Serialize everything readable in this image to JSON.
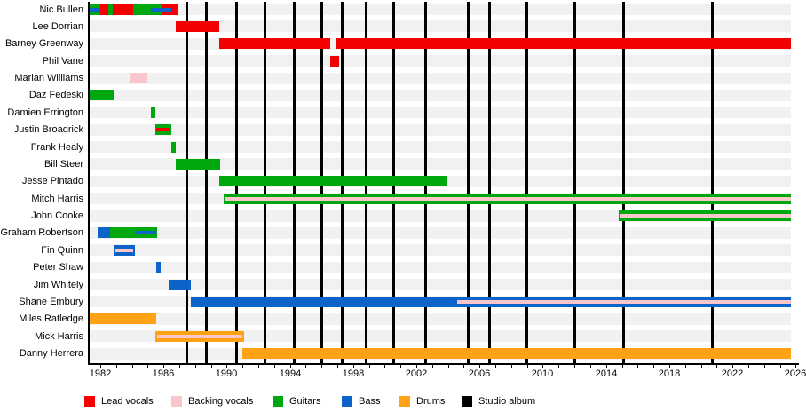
{
  "chart_data": {
    "type": "timeline",
    "description": "Band members timeline (gantt-style) with studio album release markers",
    "x_axis": {
      "domain_start": 1981.27,
      "domain_end": 2025.7,
      "tick_interval": 1,
      "label_interval": 4,
      "label_years": [
        1982,
        1986,
        1990,
        1994,
        1998,
        2002,
        2006,
        2010,
        2014,
        2018,
        2022,
        2026
      ]
    },
    "colors": {
      "red": "#f30000",
      "pink": "#f9c6cc",
      "green": "#00a810",
      "blue": "#0d64c8",
      "orange": "#ffa216",
      "black": "#000000",
      "row_band": "#f1f1f1"
    },
    "legend": [
      {
        "label": "Lead vocals",
        "color_key": "red"
      },
      {
        "label": "Backing vocals",
        "color_key": "pink"
      },
      {
        "label": "Guitars",
        "color_key": "green"
      },
      {
        "label": "Bass",
        "color_key": "blue"
      },
      {
        "label": "Drums",
        "color_key": "orange"
      },
      {
        "label": "Studio album",
        "color_key": "black"
      }
    ],
    "album_years": [
      1987.45,
      1988.7,
      1990.65,
      1992.4,
      1994.3,
      1996.0,
      1997.3,
      1998.85,
      2000.55,
      2002.6,
      2005.3,
      2006.65,
      2009.0,
      2012.05,
      2015.1,
      2020.75
    ],
    "members": [
      {
        "name": "Nic Bullen",
        "segments": [
          {
            "c": "red",
            "s": 1981.3,
            "e": 1986.9,
            "p": "full"
          },
          {
            "c": "green",
            "s": 1981.3,
            "e": 1981.95,
            "p": "full"
          },
          {
            "c": "green",
            "s": 1982.5,
            "e": 1982.8,
            "p": "full"
          },
          {
            "c": "green",
            "s": 1984.1,
            "e": 1985.9,
            "p": "full"
          },
          {
            "c": "blue",
            "s": 1981.3,
            "e": 1981.95,
            "p": "mid"
          },
          {
            "c": "blue",
            "s": 1985.2,
            "e": 1986.5,
            "p": "mid"
          }
        ]
      },
      {
        "name": "Lee Dorrian",
        "segments": [
          {
            "c": "red",
            "s": 1986.8,
            "e": 1989.55,
            "p": "full"
          }
        ]
      },
      {
        "name": "Barney Greenway",
        "segments": [
          {
            "c": "red",
            "s": 1989.55,
            "e": 1996.55,
            "p": "full"
          },
          {
            "c": "red",
            "s": 1996.9,
            "e": 2025.7,
            "p": "full"
          }
        ]
      },
      {
        "name": "Phil Vane",
        "segments": [
          {
            "c": "red",
            "s": 1996.55,
            "e": 1997.1,
            "p": "full"
          }
        ]
      },
      {
        "name": "Marian Williams",
        "segments": [
          {
            "c": "pink",
            "s": 1983.9,
            "e": 1984.95,
            "p": "full"
          }
        ]
      },
      {
        "name": "Daz Fedeski",
        "segments": [
          {
            "c": "green",
            "s": 1981.3,
            "e": 1982.8,
            "p": "full"
          }
        ]
      },
      {
        "name": "Damien Errington",
        "segments": [
          {
            "c": "green",
            "s": 1985.2,
            "e": 1985.5,
            "p": "full"
          }
        ]
      },
      {
        "name": "Justin Broadrick",
        "segments": [
          {
            "c": "green",
            "s": 1985.5,
            "e": 1986.5,
            "p": "full"
          },
          {
            "c": "red",
            "s": 1985.55,
            "e": 1986.45,
            "p": "mid"
          }
        ]
      },
      {
        "name": "Frank Healy",
        "segments": [
          {
            "c": "green",
            "s": 1986.5,
            "e": 1986.8,
            "p": "full"
          }
        ]
      },
      {
        "name": "Bill Steer",
        "segments": [
          {
            "c": "green",
            "s": 1986.75,
            "e": 1989.55,
            "p": "full"
          }
        ]
      },
      {
        "name": "Jesse Pintado",
        "segments": [
          {
            "c": "green",
            "s": 1989.55,
            "e": 2004.0,
            "p": "full"
          }
        ]
      },
      {
        "name": "Mitch Harris",
        "segments": [
          {
            "c": "green",
            "s": 1989.8,
            "e": 2025.7,
            "p": "full"
          },
          {
            "c": "pink",
            "s": 1989.9,
            "e": 2025.7,
            "p": "mid"
          }
        ]
      },
      {
        "name": "John Cooke",
        "segments": [
          {
            "c": "green",
            "s": 2014.8,
            "e": 2025.7,
            "p": "full"
          },
          {
            "c": "pink",
            "s": 2014.9,
            "e": 2025.7,
            "p": "mid"
          }
        ]
      },
      {
        "name": "Graham Robertson",
        "segments": [
          {
            "c": "blue",
            "s": 1981.85,
            "e": 1982.85,
            "p": "full"
          },
          {
            "c": "green",
            "s": 1982.6,
            "e": 1985.55,
            "p": "full"
          },
          {
            "c": "blue",
            "s": 1984.2,
            "e": 1985.55,
            "p": "mid"
          }
        ]
      },
      {
        "name": "Fin Quinn",
        "segments": [
          {
            "c": "blue",
            "s": 1982.85,
            "e": 1984.2,
            "p": "full"
          },
          {
            "c": "pink",
            "s": 1982.95,
            "e": 1984.1,
            "p": "mid"
          }
        ]
      },
      {
        "name": "Peter Shaw",
        "segments": [
          {
            "c": "blue",
            "s": 1985.55,
            "e": 1985.85,
            "p": "full"
          }
        ]
      },
      {
        "name": "Jim Whitely",
        "segments": [
          {
            "c": "blue",
            "s": 1986.35,
            "e": 1987.75,
            "p": "full"
          }
        ]
      },
      {
        "name": "Shane Embury",
        "segments": [
          {
            "c": "blue",
            "s": 1987.75,
            "e": 2025.7,
            "p": "full"
          },
          {
            "c": "pink",
            "s": 2004.6,
            "e": 2025.7,
            "p": "mid"
          }
        ]
      },
      {
        "name": "Miles Ratledge",
        "segments": [
          {
            "c": "orange",
            "s": 1981.3,
            "e": 1985.5,
            "p": "full"
          }
        ]
      },
      {
        "name": "Mick Harris",
        "segments": [
          {
            "c": "orange",
            "s": 1985.5,
            "e": 1991.1,
            "p": "full"
          },
          {
            "c": "pink",
            "s": 1985.6,
            "e": 1991.0,
            "p": "mid"
          }
        ]
      },
      {
        "name": "Danny Herrera",
        "segments": [
          {
            "c": "orange",
            "s": 1991.0,
            "e": 2025.7,
            "p": "full"
          }
        ]
      }
    ]
  }
}
